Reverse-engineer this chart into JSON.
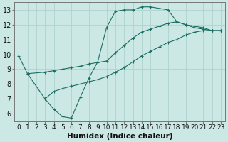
{
  "title": "",
  "xlabel": "Humidex (Indice chaleur)",
  "ylabel": "",
  "bg_color": "#cce8e4",
  "grid_color": "#aacfcb",
  "line_color": "#1a6e64",
  "xlim": [
    -0.5,
    23.5
  ],
  "ylim": [
    5.5,
    13.5
  ],
  "xticks": [
    0,
    1,
    2,
    3,
    4,
    5,
    6,
    7,
    8,
    9,
    10,
    11,
    12,
    13,
    14,
    15,
    16,
    17,
    18,
    19,
    20,
    21,
    22,
    23
  ],
  "yticks": [
    6,
    7,
    8,
    9,
    10,
    11,
    12,
    13
  ],
  "line1": {
    "x": [
      0,
      1,
      3,
      4,
      5,
      6,
      7,
      8,
      9,
      10,
      11,
      12,
      13,
      14,
      15,
      16,
      17,
      18,
      19,
      20,
      21,
      22,
      23
    ],
    "y": [
      9.9,
      8.7,
      7.0,
      6.3,
      5.8,
      5.7,
      7.1,
      8.4,
      9.5,
      11.8,
      12.9,
      13.0,
      13.0,
      13.2,
      13.2,
      13.1,
      13.0,
      12.2,
      12.0,
      11.8,
      11.7,
      11.6,
      11.6
    ]
  },
  "line2": {
    "x": [
      1,
      3,
      4,
      5,
      6,
      7,
      8,
      9,
      10,
      11,
      12,
      13,
      14,
      15,
      16,
      17,
      18,
      19,
      20,
      21,
      22,
      23
    ],
    "y": [
      8.7,
      8.8,
      8.9,
      9.0,
      9.1,
      9.2,
      9.35,
      9.45,
      9.55,
      10.1,
      10.6,
      11.1,
      11.5,
      11.7,
      11.9,
      12.1,
      12.2,
      12.0,
      11.9,
      11.8,
      11.6,
      11.6
    ]
  },
  "line3": {
    "x": [
      3,
      4,
      5,
      6,
      7,
      8,
      9,
      10,
      11,
      12,
      13,
      14,
      15,
      16,
      17,
      18,
      19,
      20,
      21,
      22,
      23
    ],
    "y": [
      7.0,
      7.5,
      7.7,
      7.85,
      8.0,
      8.15,
      8.3,
      8.5,
      8.8,
      9.1,
      9.5,
      9.9,
      10.2,
      10.5,
      10.8,
      11.0,
      11.3,
      11.5,
      11.6,
      11.6,
      11.6
    ]
  },
  "font_size": 7,
  "marker": "+"
}
